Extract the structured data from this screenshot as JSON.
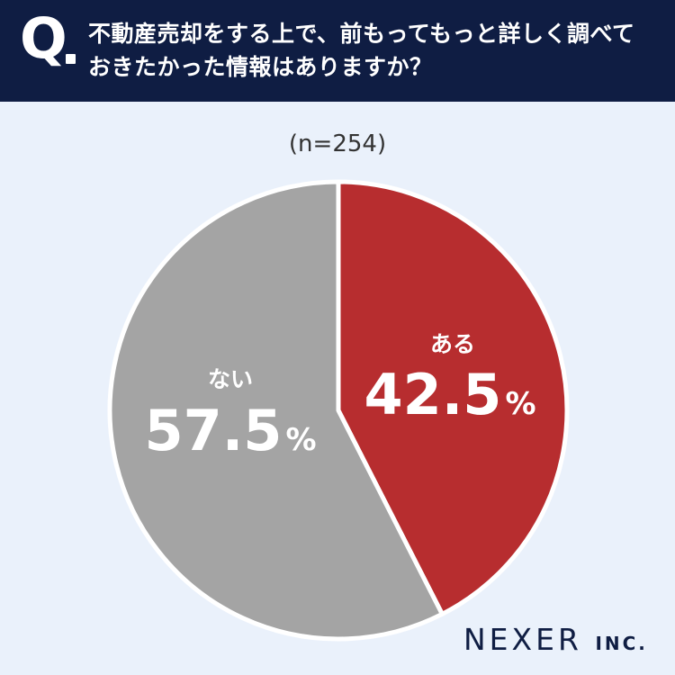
{
  "header": {
    "q_label": "Q",
    "question_line1": "不動産売却をする上で、前もってもっと詳しく調べて",
    "question_line2": "おきたかった情報はありますか？"
  },
  "sample_size": "(n=254)",
  "chart_data": {
    "type": "pie",
    "slices": [
      {
        "label": "ある",
        "value": 42.5,
        "display": "42.5",
        "unit": "%",
        "color": "#b72d2f"
      },
      {
        "label": "ない",
        "value": 57.5,
        "display": "57.5",
        "unit": "%",
        "color": "#a4a4a4"
      }
    ],
    "start_angle_deg": 0,
    "direction": "clockwise"
  },
  "logo": {
    "name": "NEXER",
    "suffix": "INC."
  }
}
